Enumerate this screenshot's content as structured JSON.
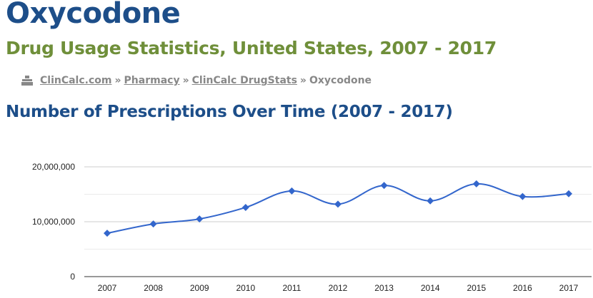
{
  "header": {
    "title": "Oxycodone",
    "subtitle": "Drug Usage Statistics, United States, 2007 - 2017"
  },
  "breadcrumb": {
    "icon": "home-icon",
    "items": [
      {
        "label": "ClinCalc.com"
      },
      {
        "label": "Pharmacy"
      },
      {
        "label": "ClinCalc DrugStats"
      },
      {
        "label": "Oxycodone"
      }
    ],
    "separator": "»"
  },
  "section": {
    "heading": "Number of Prescriptions Over Time (2007 - 2017)"
  },
  "chart_data": {
    "type": "line",
    "title": "",
    "xlabel": "",
    "ylabel": "",
    "categories": [
      "2007",
      "2008",
      "2009",
      "2010",
      "2011",
      "2012",
      "2013",
      "2014",
      "2015",
      "2016",
      "2017"
    ],
    "series": [
      {
        "values": [
          7900000,
          9600000,
          10500000,
          12600000,
          15600000,
          13200000,
          16600000,
          13800000,
          16900000,
          14600000,
          15100000
        ],
        "color": "#3366cc",
        "marker": "diamond",
        "smooth": true
      }
    ],
    "ylim": [
      0,
      20000000
    ],
    "yticks": [
      0,
      10000000,
      20000000
    ],
    "ytick_labels": [
      "0",
      "10,000,000",
      "20,000,000"
    ],
    "grid": true,
    "legend": "none"
  }
}
